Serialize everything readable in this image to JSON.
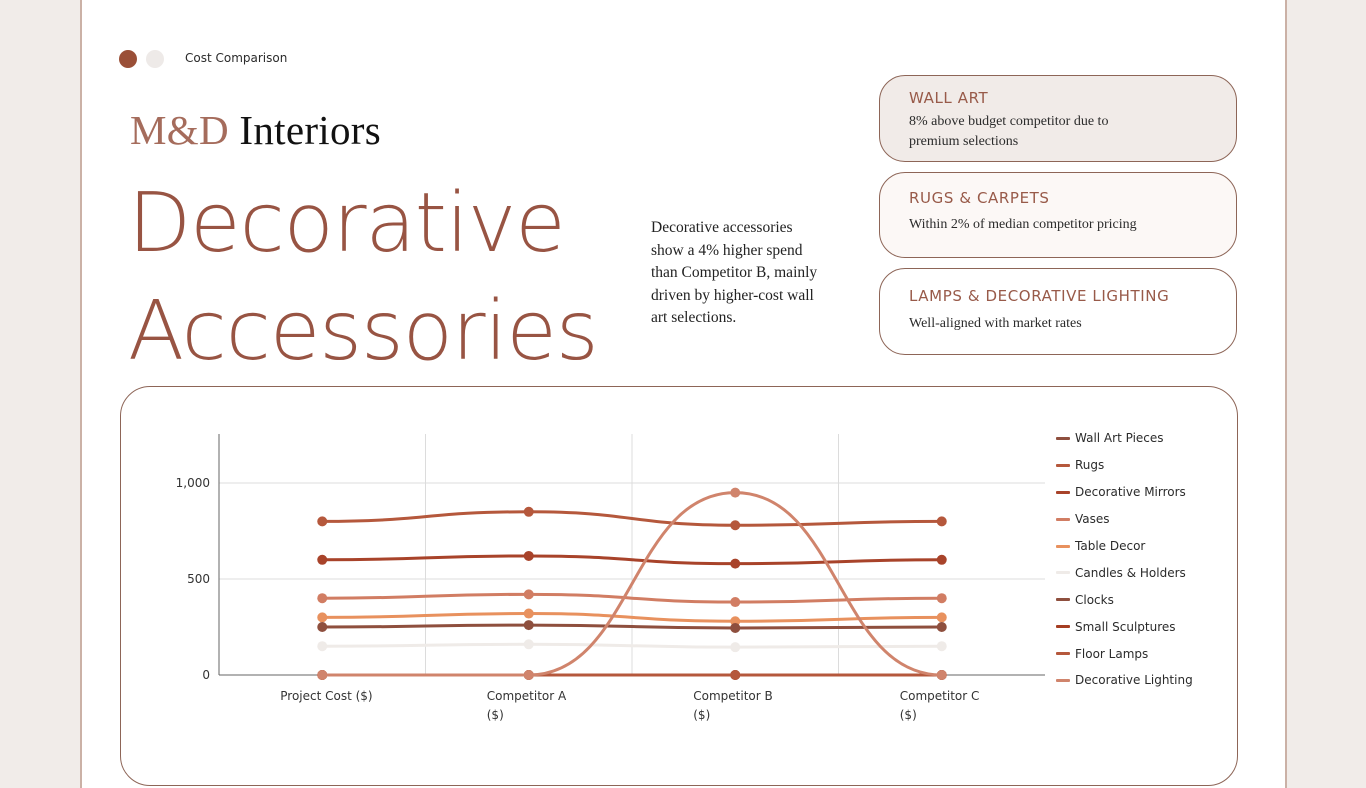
{
  "header": {
    "section_label": "Cost Comparison",
    "pager_dots": [
      {
        "state": "active"
      },
      {
        "state": "inactive"
      }
    ],
    "brand_part1": "M&D",
    "brand_part2": " Interiors"
  },
  "title": {
    "line1": "Decorative",
    "line2": "Accessories"
  },
  "summary": "Decorative accessories show a 4% higher spend than Competitor B, mainly driven by higher-cost wall art selections.",
  "cards": [
    {
      "title": "WALL ART",
      "body": "8% above budget competitor due to premium selections"
    },
    {
      "title": "RUGS & CARPETS",
      "body": "Within 2% of median competitor pricing"
    },
    {
      "title": "LAMPS & DECORATIVE LIGHTING",
      "body": "Well-aligned with market rates"
    }
  ],
  "colors": {
    "accent": "#985443",
    "background": "#f1ece9",
    "border": "#8d6557"
  },
  "chart_data": {
    "type": "line",
    "title": "",
    "xlabel": "",
    "ylabel": "",
    "categories": [
      "Project Cost ($)",
      "Competitor A ($)",
      "Competitor B ($)",
      "Competitor C ($)"
    ],
    "category_lines": [
      [
        "Project Cost ($)"
      ],
      [
        "Competitor A",
        "($)"
      ],
      [
        "Competitor B",
        "($)"
      ],
      [
        "Competitor C",
        "($)"
      ]
    ],
    "yticks": [
      0,
      500,
      1000
    ],
    "ytick_labels": [
      "0",
      "500",
      "1,000"
    ],
    "ylim": [
      0,
      1250
    ],
    "grid": true,
    "smooth": true,
    "legend_position": "right",
    "series": [
      {
        "name": "Wall Art Pieces",
        "color": "#8e4f3e",
        "values": [
          0,
          0,
          0,
          0
        ]
      },
      {
        "name": "Rugs",
        "color": "#b5583c",
        "values": [
          800,
          850,
          780,
          800
        ]
      },
      {
        "name": "Decorative Mirrors",
        "color": "#a8432a",
        "values": [
          600,
          620,
          580,
          600
        ]
      },
      {
        "name": "Vases",
        "color": "#d17d63",
        "values": [
          400,
          420,
          380,
          400
        ]
      },
      {
        "name": "Table Decor",
        "color": "#e8915e",
        "values": [
          300,
          320,
          280,
          300
        ]
      },
      {
        "name": "Candles & Holders",
        "color": "#efebe8",
        "values": [
          150,
          160,
          145,
          150
        ]
      },
      {
        "name": "Clocks",
        "color": "#8e4f3e",
        "values": [
          250,
          260,
          245,
          250
        ]
      },
      {
        "name": "Small Sculptures",
        "color": "#a53d22",
        "values": [
          0,
          0,
          0,
          0
        ]
      },
      {
        "name": "Floor Lamps",
        "color": "#b5583c",
        "values": [
          0,
          0,
          0,
          0
        ]
      },
      {
        "name": "Decorative Lighting",
        "color": "#d0846c",
        "values": [
          0,
          0,
          950,
          0
        ]
      }
    ]
  }
}
